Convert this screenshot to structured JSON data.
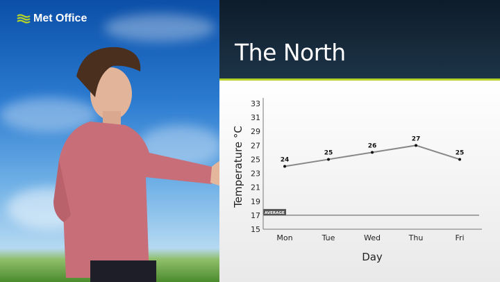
{
  "brand": {
    "logo_text": "Met Office",
    "accent": "#b4d22a"
  },
  "panel": {
    "title": "The North"
  },
  "chart_data": {
    "type": "line",
    "title": "",
    "xlabel": "Day",
    "ylabel": "Temperature °C",
    "categories": [
      "Mon",
      "Tue",
      "Wed",
      "Thu",
      "Fri"
    ],
    "values": [
      24,
      25,
      26,
      27,
      25
    ],
    "data_labels": [
      "24",
      "25",
      "26",
      "27",
      "25"
    ],
    "ylim": [
      15,
      33
    ],
    "yticks": [
      15,
      17,
      19,
      21,
      23,
      25,
      27,
      29,
      31,
      33
    ],
    "reference_line": {
      "label": "AVERAGE",
      "value": 17
    },
    "grid": false,
    "line_color": "#888888"
  }
}
